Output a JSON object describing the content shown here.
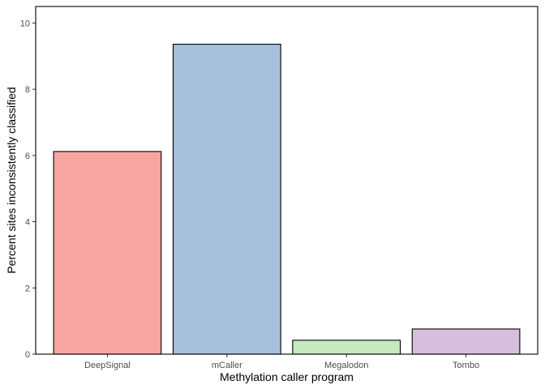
{
  "chart_data": {
    "type": "bar",
    "categories": [
      "DeepSignal",
      "mCaller",
      "Megalodon",
      "Tombo"
    ],
    "values": [
      6.12,
      9.36,
      0.42,
      0.76
    ],
    "colors": [
      "#f8a5a2",
      "#a7c1dd",
      "#c7e9bf",
      "#d6bfdd"
    ],
    "bar_outline": "#000000",
    "xlabel": "Methylation caller program",
    "ylabel": "Percent sites inconsistently classified",
    "ylim": [
      0,
      10.5
    ],
    "yticks": [
      0,
      2,
      4,
      6,
      8,
      10
    ],
    "grid": false,
    "legend": "none"
  }
}
